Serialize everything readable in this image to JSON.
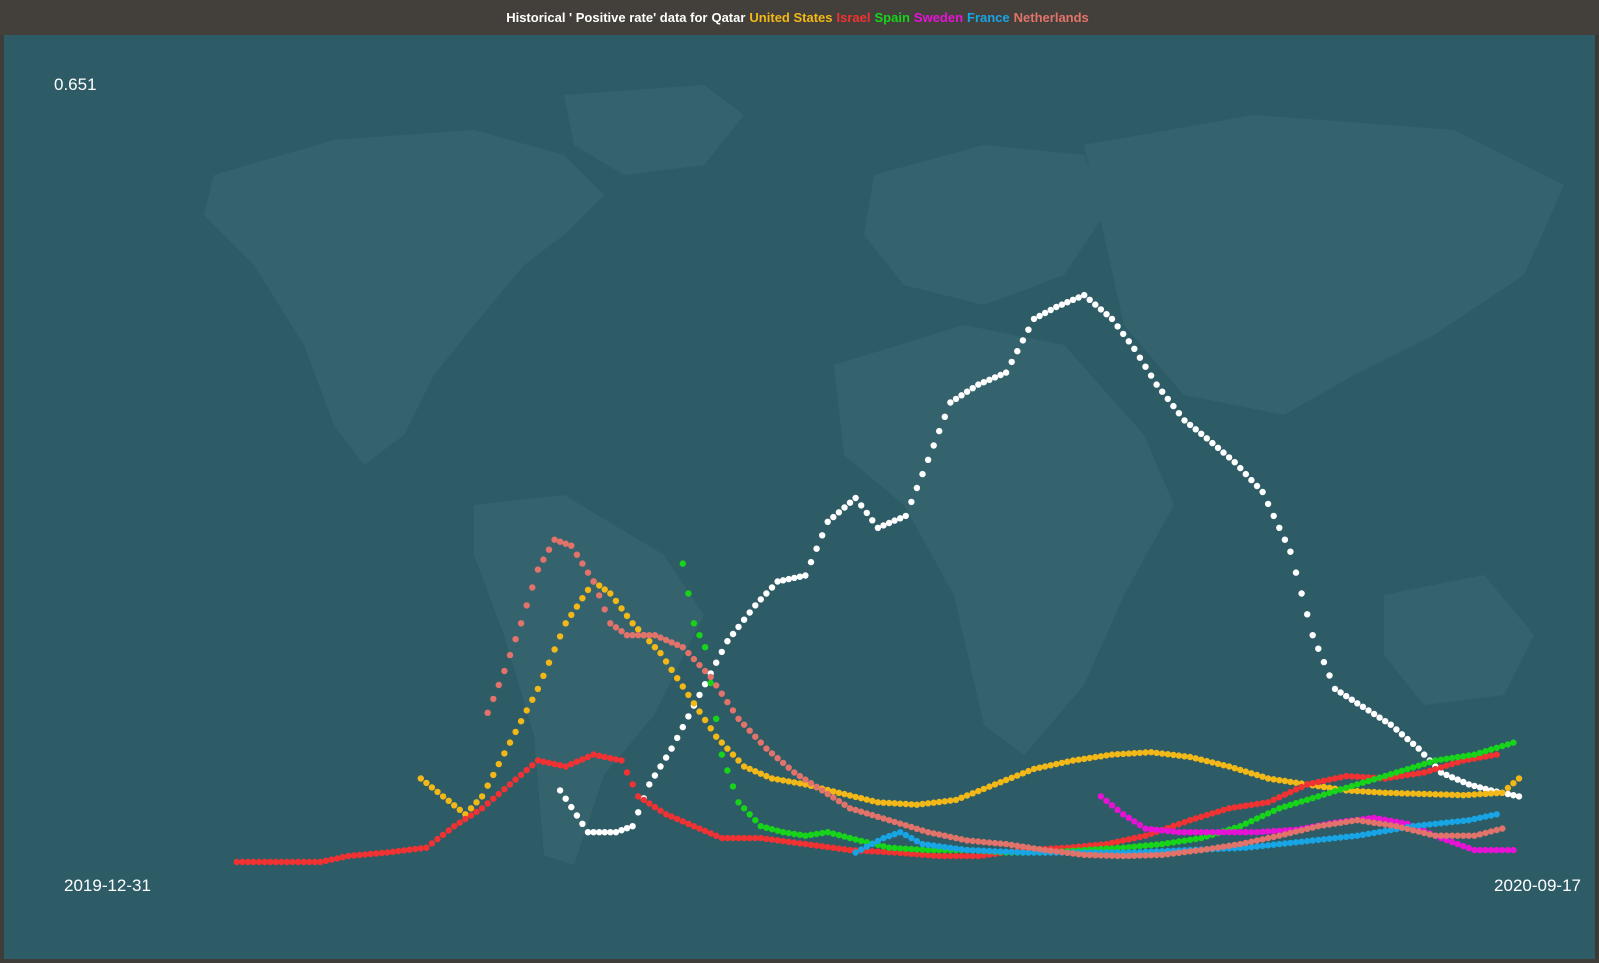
{
  "chart_data": {
    "type": "scatter",
    "title_prefix": "Historical ' Positive rate' data for",
    "y_max_label": "0.651",
    "x_start_label": "2019-12-31",
    "x_end_label": "2020-09-17",
    "x_range": [
      "2019-12-31",
      "2020-09-17"
    ],
    "ylim": [
      0,
      0.651
    ],
    "series": [
      {
        "name": "Qatar",
        "color": "#ffffff",
        "points": [
          [
            "2020-03-29",
            0.06
          ],
          [
            "2020-04-03",
            0.025
          ],
          [
            "2020-04-08",
            0.025
          ],
          [
            "2020-04-11",
            0.03
          ],
          [
            "2020-04-14",
            0.065
          ],
          [
            "2020-04-18",
            0.095
          ],
          [
            "2020-04-23",
            0.14
          ],
          [
            "2020-04-28",
            0.185
          ],
          [
            "2020-05-03",
            0.215
          ],
          [
            "2020-05-07",
            0.235
          ],
          [
            "2020-05-12",
            0.24
          ],
          [
            "2020-05-16",
            0.285
          ],
          [
            "2020-05-21",
            0.305
          ],
          [
            "2020-05-25",
            0.28
          ],
          [
            "2020-05-30",
            0.29
          ],
          [
            "2020-06-02",
            0.325
          ],
          [
            "2020-06-07",
            0.385
          ],
          [
            "2020-06-12",
            0.4
          ],
          [
            "2020-06-17",
            0.41
          ],
          [
            "2020-06-22",
            0.455
          ],
          [
            "2020-06-26",
            0.465
          ],
          [
            "2020-07-01",
            0.475
          ],
          [
            "2020-07-06",
            0.455
          ],
          [
            "2020-07-10",
            0.43
          ],
          [
            "2020-07-14",
            0.4
          ],
          [
            "2020-07-19",
            0.37
          ],
          [
            "2020-07-23",
            0.355
          ],
          [
            "2020-07-28",
            0.335
          ],
          [
            "2020-08-02",
            0.31
          ],
          [
            "2020-08-07",
            0.26
          ],
          [
            "2020-08-11",
            0.19
          ],
          [
            "2020-08-15",
            0.145
          ],
          [
            "2020-08-20",
            0.13
          ],
          [
            "2020-08-25",
            0.115
          ],
          [
            "2020-08-30",
            0.095
          ],
          [
            "2020-09-03",
            0.075
          ],
          [
            "2020-09-08",
            0.065
          ],
          [
            "2020-09-12",
            0.06
          ],
          [
            "2020-09-17",
            0.055
          ]
        ]
      },
      {
        "name": "United States",
        "color": "#f2b817",
        "points": [
          [
            "2020-03-04",
            0.07
          ],
          [
            "2020-03-08",
            0.055
          ],
          [
            "2020-03-12",
            0.04
          ],
          [
            "2020-03-15",
            0.055
          ],
          [
            "2020-03-20",
            0.1
          ],
          [
            "2020-03-25",
            0.145
          ],
          [
            "2020-03-30",
            0.2
          ],
          [
            "2020-04-04",
            0.235
          ],
          [
            "2020-04-07",
            0.225
          ],
          [
            "2020-04-11",
            0.2
          ],
          [
            "2020-04-16",
            0.175
          ],
          [
            "2020-04-21",
            0.14
          ],
          [
            "2020-04-26",
            0.105
          ],
          [
            "2020-05-01",
            0.08
          ],
          [
            "2020-05-06",
            0.07
          ],
          [
            "2020-05-12",
            0.065
          ],
          [
            "2020-05-18",
            0.058
          ],
          [
            "2020-05-25",
            0.05
          ],
          [
            "2020-06-01",
            0.048
          ],
          [
            "2020-06-08",
            0.052
          ],
          [
            "2020-06-15",
            0.065
          ],
          [
            "2020-06-22",
            0.078
          ],
          [
            "2020-06-29",
            0.085
          ],
          [
            "2020-07-06",
            0.09
          ],
          [
            "2020-07-13",
            0.092
          ],
          [
            "2020-07-20",
            0.088
          ],
          [
            "2020-07-27",
            0.08
          ],
          [
            "2020-08-03",
            0.07
          ],
          [
            "2020-08-10",
            0.065
          ],
          [
            "2020-08-17",
            0.06
          ],
          [
            "2020-08-24",
            0.058
          ],
          [
            "2020-08-31",
            0.057
          ],
          [
            "2020-09-07",
            0.056
          ],
          [
            "2020-09-14",
            0.058
          ],
          [
            "2020-09-17",
            0.07
          ]
        ]
      },
      {
        "name": "Israel",
        "color": "#f23232",
        "points": [
          [
            "2020-01-31",
            0.0
          ],
          [
            "2020-02-15",
            0.0
          ],
          [
            "2020-02-20",
            0.005
          ],
          [
            "2020-02-27",
            0.008
          ],
          [
            "2020-03-05",
            0.012
          ],
          [
            "2020-03-10",
            0.03
          ],
          [
            "2020-03-15",
            0.045
          ],
          [
            "2020-03-20",
            0.065
          ],
          [
            "2020-03-25",
            0.085
          ],
          [
            "2020-03-30",
            0.08
          ],
          [
            "2020-04-04",
            0.09
          ],
          [
            "2020-04-09",
            0.085
          ],
          [
            "2020-04-12",
            0.055
          ],
          [
            "2020-04-17",
            0.04
          ],
          [
            "2020-04-22",
            0.03
          ],
          [
            "2020-04-27",
            0.02
          ],
          [
            "2020-05-04",
            0.02
          ],
          [
            "2020-05-12",
            0.015
          ],
          [
            "2020-05-20",
            0.01
          ],
          [
            "2020-05-28",
            0.008
          ],
          [
            "2020-06-05",
            0.005
          ],
          [
            "2020-06-12",
            0.005
          ],
          [
            "2020-06-20",
            0.01
          ],
          [
            "2020-06-28",
            0.012
          ],
          [
            "2020-07-05",
            0.015
          ],
          [
            "2020-07-12",
            0.022
          ],
          [
            "2020-07-20",
            0.035
          ],
          [
            "2020-07-27",
            0.045
          ],
          [
            "2020-08-03",
            0.05
          ],
          [
            "2020-08-10",
            0.065
          ],
          [
            "2020-08-17",
            0.072
          ],
          [
            "2020-08-24",
            0.07
          ],
          [
            "2020-08-31",
            0.075
          ],
          [
            "2020-09-07",
            0.085
          ],
          [
            "2020-09-13",
            0.09
          ]
        ]
      },
      {
        "name": "Spain",
        "color": "#17d41a",
        "points": [
          [
            "2020-04-20",
            0.25
          ],
          [
            "2020-04-22",
            0.2
          ],
          [
            "2020-04-24",
            0.18
          ],
          [
            "2020-04-27",
            0.09
          ],
          [
            "2020-04-30",
            0.05
          ],
          [
            "2020-05-04",
            0.03
          ],
          [
            "2020-05-08",
            0.025
          ],
          [
            "2020-05-12",
            0.022
          ],
          [
            "2020-05-16",
            0.025
          ],
          [
            "2020-05-20",
            0.02
          ],
          [
            "2020-05-27",
            0.012
          ],
          [
            "2020-06-03",
            0.01
          ],
          [
            "2020-06-10",
            0.01
          ],
          [
            "2020-06-17",
            0.008
          ],
          [
            "2020-06-24",
            0.008
          ],
          [
            "2020-07-01",
            0.01
          ],
          [
            "2020-07-08",
            0.012
          ],
          [
            "2020-07-15",
            0.015
          ],
          [
            "2020-07-22",
            0.02
          ],
          [
            "2020-07-29",
            0.03
          ],
          [
            "2020-08-05",
            0.045
          ],
          [
            "2020-08-12",
            0.055
          ],
          [
            "2020-08-19",
            0.065
          ],
          [
            "2020-08-26",
            0.075
          ],
          [
            "2020-09-02",
            0.085
          ],
          [
            "2020-09-09",
            0.09
          ],
          [
            "2020-09-16",
            0.1
          ]
        ]
      },
      {
        "name": "Sweden",
        "color": "#e812d6",
        "points": [
          [
            "2020-07-04",
            0.055
          ],
          [
            "2020-07-08",
            0.04
          ],
          [
            "2020-07-12",
            0.028
          ],
          [
            "2020-07-18",
            0.025
          ],
          [
            "2020-07-25",
            0.025
          ],
          [
            "2020-08-01",
            0.025
          ],
          [
            "2020-08-08",
            0.027
          ],
          [
            "2020-08-15",
            0.033
          ],
          [
            "2020-08-22",
            0.037
          ],
          [
            "2020-08-28",
            0.032
          ],
          [
            "2020-09-03",
            0.02
          ],
          [
            "2020-09-09",
            0.01
          ],
          [
            "2020-09-16",
            0.01
          ]
        ]
      },
      {
        "name": "France",
        "color": "#17a5e6",
        "points": [
          [
            "2020-05-21",
            0.008
          ],
          [
            "2020-05-26",
            0.02
          ],
          [
            "2020-05-29",
            0.025
          ],
          [
            "2020-06-02",
            0.015
          ],
          [
            "2020-06-10",
            0.01
          ],
          [
            "2020-06-20",
            0.008
          ],
          [
            "2020-06-30",
            0.008
          ],
          [
            "2020-07-10",
            0.008
          ],
          [
            "2020-07-20",
            0.01
          ],
          [
            "2020-07-30",
            0.012
          ],
          [
            "2020-08-09",
            0.017
          ],
          [
            "2020-08-19",
            0.022
          ],
          [
            "2020-08-29",
            0.03
          ],
          [
            "2020-09-08",
            0.035
          ],
          [
            "2020-09-13",
            0.04
          ]
        ]
      },
      {
        "name": "Netherlands",
        "color": "#e2736a",
        "points": [
          [
            "2020-03-16",
            0.125
          ],
          [
            "2020-03-19",
            0.16
          ],
          [
            "2020-03-22",
            0.2
          ],
          [
            "2020-03-25",
            0.245
          ],
          [
            "2020-03-28",
            0.27
          ],
          [
            "2020-03-31",
            0.265
          ],
          [
            "2020-04-04",
            0.235
          ],
          [
            "2020-04-07",
            0.2
          ],
          [
            "2020-04-10",
            0.19
          ],
          [
            "2020-04-15",
            0.19
          ],
          [
            "2020-04-20",
            0.18
          ],
          [
            "2020-04-25",
            0.155
          ],
          [
            "2020-04-30",
            0.12
          ],
          [
            "2020-05-05",
            0.095
          ],
          [
            "2020-05-10",
            0.075
          ],
          [
            "2020-05-15",
            0.06
          ],
          [
            "2020-05-20",
            0.045
          ],
          [
            "2020-05-27",
            0.035
          ],
          [
            "2020-06-03",
            0.025
          ],
          [
            "2020-06-10",
            0.018
          ],
          [
            "2020-06-17",
            0.015
          ],
          [
            "2020-06-24",
            0.01
          ],
          [
            "2020-07-01",
            0.006
          ],
          [
            "2020-07-08",
            0.005
          ],
          [
            "2020-07-15",
            0.006
          ],
          [
            "2020-07-22",
            0.01
          ],
          [
            "2020-07-29",
            0.015
          ],
          [
            "2020-08-05",
            0.022
          ],
          [
            "2020-08-12",
            0.03
          ],
          [
            "2020-08-19",
            0.035
          ],
          [
            "2020-08-26",
            0.03
          ],
          [
            "2020-09-02",
            0.022
          ],
          [
            "2020-09-09",
            0.022
          ],
          [
            "2020-09-14",
            0.028
          ]
        ]
      }
    ]
  },
  "colors": {
    "background": "#2e5c66",
    "landmass": "#3a6a74",
    "titlebar": "#43403b"
  }
}
